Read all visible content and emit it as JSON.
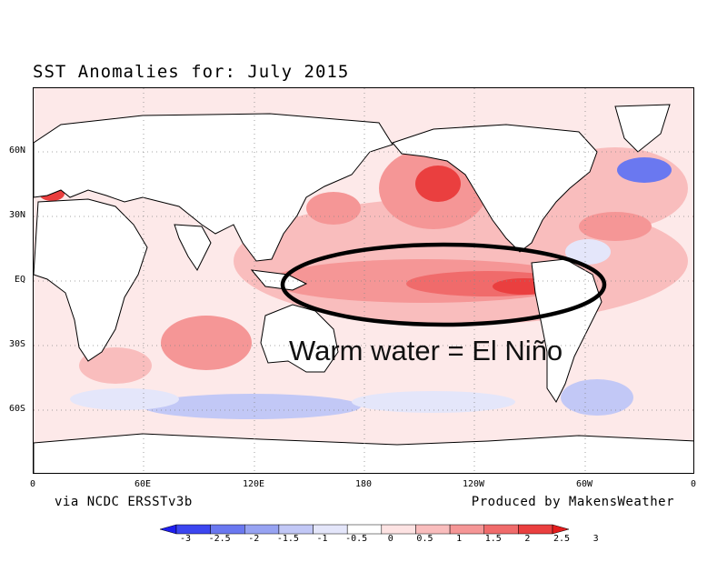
{
  "map": {
    "title": "SST Anomalies for: July 2015",
    "annotation": "Warm water = El Niño",
    "credit_left": "via NCDC ERSSTv3b",
    "credit_right": "Produced by MakensWeather",
    "lat_ticks": [
      "60N",
      "30N",
      "EQ",
      "30S",
      "60S"
    ],
    "lon_ticks": [
      "0",
      "60E",
      "120E",
      "180",
      "120W",
      "60W",
      "0"
    ],
    "colorbar": {
      "ticks": [
        "-3",
        "-2.5",
        "-2",
        "-1.5",
        "-1",
        "-0.5",
        "0",
        "0.5",
        "1",
        "1.5",
        "2",
        "2.5",
        "3"
      ],
      "colors": [
        "#1e1ef0",
        "#3c46f0",
        "#6a78f0",
        "#97a3f2",
        "#c2c8f6",
        "#e4e6fa",
        "#ffffff",
        "#fde3e3",
        "#f9bdbd",
        "#f59696",
        "#f06b6b",
        "#ea3f3f",
        "#e41c1c"
      ]
    },
    "colors": {
      "land": "#ffffff",
      "ocean_base": "#fde9e9",
      "warm_strong": "#ea3f3f",
      "warm_mid": "#f59696",
      "cool": "#c2c8f6",
      "cool_strong": "#6a78f0",
      "outline": "#000000"
    }
  }
}
